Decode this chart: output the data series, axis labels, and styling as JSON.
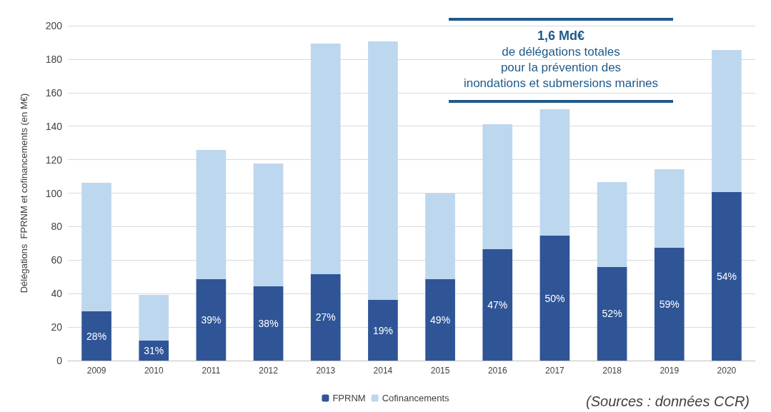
{
  "chart_data": {
    "type": "bar",
    "stacked": true,
    "ylabel": "Délégations  FPRNM et cofinancements (en M€)",
    "categories": [
      "2009",
      "2010",
      "2011",
      "2012",
      "2013",
      "2014",
      "2015",
      "2016",
      "2017",
      "2018",
      "2019",
      "2020"
    ],
    "series": [
      {
        "name": "FPRNM",
        "color": "#2f5597",
        "values": [
          29.4,
          12,
          48.6,
          44.3,
          51.6,
          36.2,
          48.6,
          66.5,
          74.6,
          55.9,
          67.4,
          100.6
        ]
      },
      {
        "name": "Cofinancements",
        "color": "#bdd7ee",
        "values": [
          76.8,
          27.2,
          77.2,
          73.4,
          137.7,
          154.4,
          51.2,
          74.7,
          75.5,
          50.7,
          46.9,
          84.9
        ]
      }
    ],
    "ylim": [
      0,
      200
    ],
    "yticks": [
      0,
      20,
      40,
      60,
      80,
      100,
      120,
      140,
      160,
      180,
      200
    ],
    "grid": "y",
    "legend": "bottom",
    "annotations": [
      "1,6 Md€\nde délégations totales\npour la prévention des\ninondations et submersions marines",
      "(Sources : données CCR)",
      "28%",
      "31%",
      "39%",
      "38%",
      "27%",
      "19%",
      "49%",
      "47%",
      "50%",
      "52%",
      "59%",
      "54%"
    ]
  }
}
